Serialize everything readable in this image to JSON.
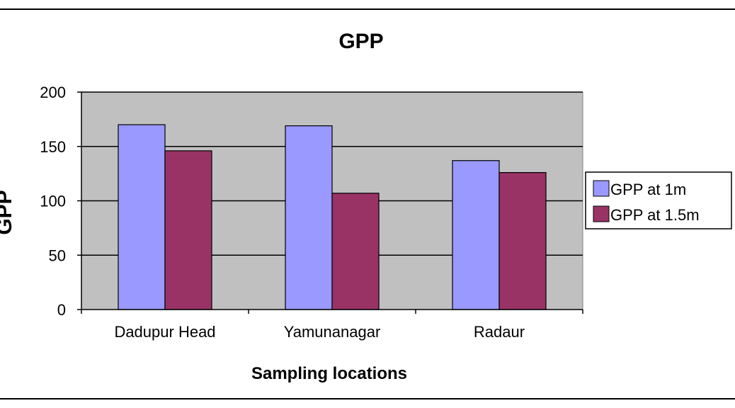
{
  "chart_data": {
    "type": "bar",
    "title": "GPP",
    "xlabel": "Sampling locations",
    "ylabel": "GPP",
    "categories": [
      "Dadupur Head",
      "Yamunanagar",
      "Radaur"
    ],
    "series": [
      {
        "name": "GPP at 1m",
        "color": "#9999ff",
        "values": [
          170,
          169,
          137
        ]
      },
      {
        "name": "GPP at 1.5m",
        "color": "#993366",
        "values": [
          146,
          107,
          126
        ]
      }
    ],
    "ylim": [
      0,
      200
    ],
    "yticks": [
      0,
      50,
      100,
      150,
      200
    ],
    "grid": true,
    "plot_background": "#c0c0c0",
    "legend_position": "right"
  }
}
